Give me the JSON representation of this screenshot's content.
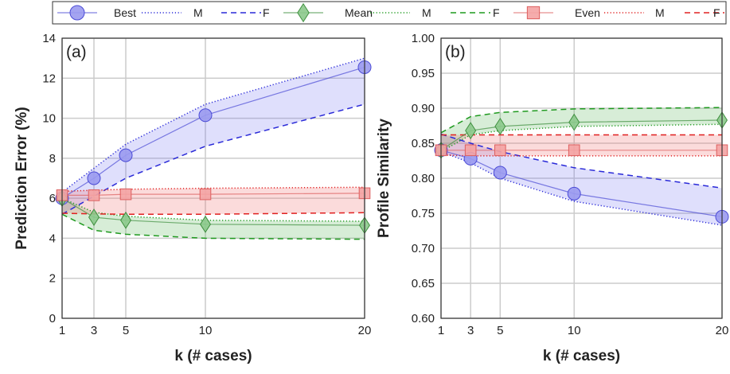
{
  "legend": {
    "entries": [
      {
        "label": "Best",
        "kind": "marker",
        "marker": "circle",
        "color": "#4b4bd6",
        "fill": "#9a9af0"
      },
      {
        "label": "M",
        "kind": "line",
        "dash": "dotted",
        "color": "#2a2ad8"
      },
      {
        "label": "F",
        "kind": "line",
        "dash": "dashed",
        "color": "#2a2ad8"
      },
      {
        "label": "Mean",
        "kind": "marker",
        "marker": "diamond",
        "color": "#3f8f3f",
        "fill": "#8cc98c"
      },
      {
        "label": "M",
        "kind": "line",
        "dash": "dotted",
        "color": "#1f9a1f"
      },
      {
        "label": "F",
        "kind": "line",
        "dash": "dashed",
        "color": "#1f9a1f"
      },
      {
        "label": "Even",
        "kind": "marker",
        "marker": "square",
        "color": "#dd5f5f",
        "fill": "#f4a3a3"
      },
      {
        "label": "M",
        "kind": "line",
        "dash": "dotted",
        "color": "#e02020"
      },
      {
        "label": "F",
        "kind": "line",
        "dash": "dashed",
        "color": "#e02020"
      }
    ]
  },
  "chart_data": [
    {
      "type": "line",
      "panel_label": "(a)",
      "xlabel": "k (# cases)",
      "ylabel": "Prediction Error (%)",
      "x": [
        1,
        3,
        5,
        10,
        20
      ],
      "xticks": [
        "1",
        "3",
        "5",
        "10",
        "20"
      ],
      "xlim": [
        1,
        20
      ],
      "ylim": [
        0,
        14
      ],
      "yticks": [
        "0",
        "2",
        "4",
        "6",
        "8",
        "10",
        "12",
        "14"
      ],
      "grid": true,
      "series": [
        {
          "name": "Best",
          "color": "#4b4bd6",
          "marker": "circle",
          "values": [
            6.0,
            7.0,
            8.15,
            10.15,
            12.55
          ]
        },
        {
          "name": "M",
          "group": "Best",
          "style": "dotted",
          "color": "#2a2ad8",
          "values": [
            6.3,
            7.5,
            8.7,
            10.7,
            13.0
          ]
        },
        {
          "name": "F",
          "group": "Best",
          "style": "dashed",
          "color": "#2a2ad8",
          "values": [
            5.2,
            6.1,
            7.0,
            8.6,
            10.7
          ]
        },
        {
          "name": "Mean",
          "color": "#3f8f3f",
          "marker": "diamond",
          "values": [
            6.0,
            5.05,
            4.9,
            4.7,
            4.65
          ]
        },
        {
          "name": "M",
          "group": "Mean",
          "style": "dotted",
          "color": "#1f9a1f",
          "values": [
            6.0,
            5.3,
            5.1,
            4.9,
            4.85
          ]
        },
        {
          "name": "F",
          "group": "Mean",
          "style": "dashed",
          "color": "#1f9a1f",
          "values": [
            5.2,
            4.4,
            4.2,
            4.0,
            3.95
          ]
        },
        {
          "name": "Even",
          "color": "#dd5f5f",
          "marker": "square",
          "values": [
            6.15,
            6.15,
            6.2,
            6.2,
            6.25
          ]
        },
        {
          "name": "M",
          "group": "Even",
          "style": "dotted",
          "color": "#e02020",
          "values": [
            6.35,
            6.4,
            6.45,
            6.5,
            6.55
          ]
        },
        {
          "name": "F",
          "group": "Even",
          "style": "dashed",
          "color": "#e02020",
          "values": [
            5.25,
            5.22,
            5.2,
            5.2,
            5.28
          ]
        }
      ]
    },
    {
      "type": "line",
      "panel_label": "(b)",
      "xlabel": "k (# cases)",
      "ylabel": "Profile Similarity",
      "x": [
        1,
        3,
        5,
        10,
        20
      ],
      "xticks": [
        "1",
        "3",
        "5",
        "10",
        "20"
      ],
      "xlim": [
        1,
        20
      ],
      "ylim": [
        0.6,
        1.0
      ],
      "yticks": [
        "0.60",
        "0.65",
        "0.70",
        "0.75",
        "0.80",
        "0.85",
        "0.90",
        "0.95",
        "1.00"
      ],
      "grid": true,
      "series": [
        {
          "name": "Best",
          "color": "#4b4bd6",
          "marker": "circle",
          "values": [
            0.84,
            0.828,
            0.808,
            0.778,
            0.745
          ]
        },
        {
          "name": "M",
          "group": "Best",
          "style": "dotted",
          "color": "#2a2ad8",
          "values": [
            0.838,
            0.822,
            0.8,
            0.767,
            0.733
          ]
        },
        {
          "name": "F",
          "group": "Best",
          "style": "dashed",
          "color": "#2a2ad8",
          "values": [
            0.863,
            0.85,
            0.838,
            0.815,
            0.786
          ]
        },
        {
          "name": "Mean",
          "color": "#3f8f3f",
          "marker": "diamond",
          "values": [
            0.84,
            0.868,
            0.874,
            0.88,
            0.883
          ]
        },
        {
          "name": "M",
          "group": "Mean",
          "style": "dotted",
          "color": "#1f9a1f",
          "values": [
            0.838,
            0.862,
            0.868,
            0.874,
            0.877
          ]
        },
        {
          "name": "F",
          "group": "Mean",
          "style": "dashed",
          "color": "#1f9a1f",
          "values": [
            0.865,
            0.888,
            0.894,
            0.899,
            0.901
          ]
        },
        {
          "name": "Even",
          "color": "#dd5f5f",
          "marker": "square",
          "values": [
            0.84,
            0.84,
            0.84,
            0.84,
            0.84
          ]
        },
        {
          "name": "M",
          "group": "Even",
          "style": "dotted",
          "color": "#e02020",
          "values": [
            0.833,
            0.832,
            0.832,
            0.832,
            0.832
          ]
        },
        {
          "name": "F",
          "group": "Even",
          "style": "dashed",
          "color": "#e02020",
          "values": [
            0.862,
            0.862,
            0.862,
            0.862,
            0.862
          ]
        }
      ]
    }
  ]
}
